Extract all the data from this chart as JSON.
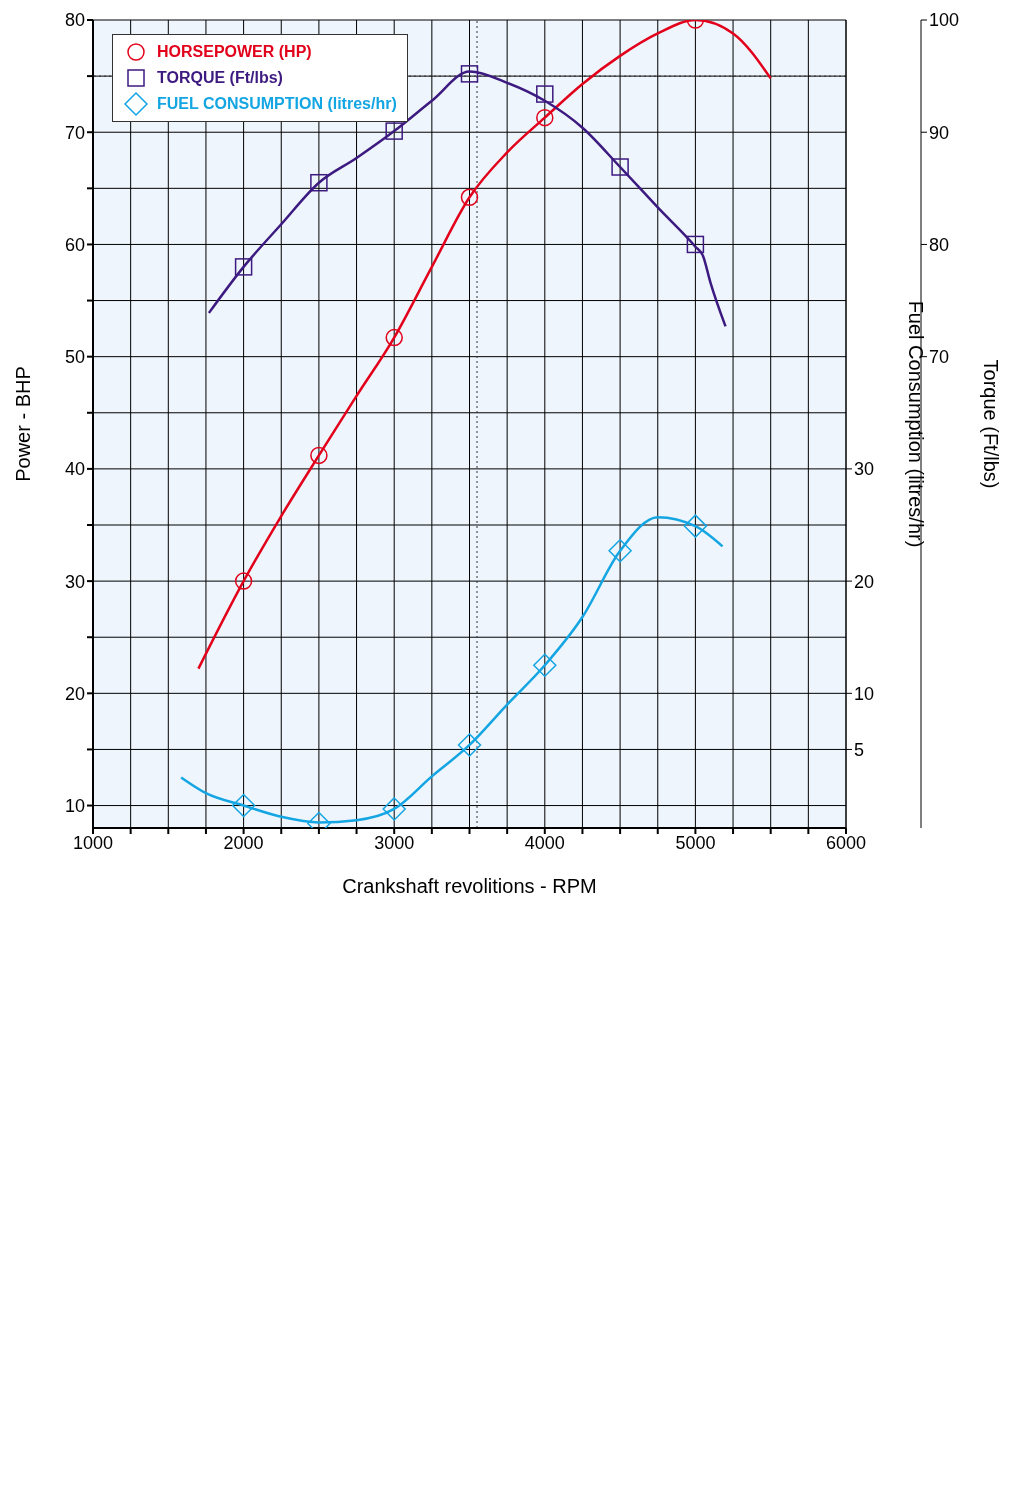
{
  "chart_data": {
    "type": "line",
    "xlabel": "Crankshaft revolitions - RPM",
    "ylabel": "Power - BHP",
    "y2label": "Torque (Ft/lbs)",
    "y3label": "Fuel Consumption (litres/hr)",
    "xlim": [
      1000,
      6000
    ],
    "xticks": [
      1000,
      {
        "value": 1250,
        "label": null
      },
      {
        "value": 1500,
        "label": null
      },
      {
        "value": 1750,
        "label": null
      },
      2000,
      {
        "value": 2250,
        "label": null
      },
      {
        "value": 2500,
        "label": null
      },
      {
        "value": 2750,
        "label": null
      },
      3000,
      {
        "value": 3250,
        "label": null
      },
      {
        "value": 3500,
        "label": null
      },
      {
        "value": 3750,
        "label": null
      },
      4000,
      {
        "value": 4250,
        "label": null
      },
      {
        "value": 4500,
        "label": null
      },
      {
        "value": 4750,
        "label": null
      },
      5000,
      {
        "value": 5250,
        "label": null
      },
      {
        "value": 5500,
        "label": null
      },
      {
        "value": 5750,
        "label": null
      },
      6000
    ],
    "ylim": [
      8,
      80
    ],
    "yticks": [
      10,
      {
        "value": 15,
        "label": null
      },
      20,
      {
        "value": 25,
        "label": null
      },
      30,
      {
        "value": 35,
        "label": null
      },
      40,
      {
        "value": 45,
        "label": null
      },
      50,
      {
        "value": 55,
        "label": null
      },
      60,
      {
        "value": 65,
        "label": null
      },
      70,
      {
        "value": 75,
        "label": null
      },
      80
    ],
    "y2lim": [
      28,
      100
    ],
    "y2ticks": [
      70,
      80,
      90,
      100
    ],
    "y3lim": [
      -2,
      70
    ],
    "y3ticks": [
      5,
      10,
      20,
      30
    ],
    "grid": true,
    "legend": "top left",
    "ref_lines": [
      {
        "axis": "y2",
        "value": 95,
        "line_style": "dotted"
      },
      {
        "axis": "x",
        "value": 3550,
        "line_style": "dotted"
      }
    ],
    "series": [
      {
        "name": "HORSEPOWER (HP)",
        "marker": "none",
        "color": "#e2001a",
        "x": [
          1700,
          2000,
          2250,
          2500,
          2750,
          3000,
          3250,
          3500,
          3750,
          4000,
          4250,
          4500,
          4750,
          5000,
          5250,
          5500
        ],
        "values": [
          22.2,
          30,
          35.8,
          41.2,
          46.5,
          51.7,
          58,
          64.2,
          68.2,
          71.3,
          74.3,
          76.8,
          78.8,
          80,
          78.8,
          74.8
        ]
      },
      {
        "type": "scatter",
        "marker": "circle",
        "color": "#e2001a",
        "x": [
          2000,
          2500,
          3000,
          3500,
          4000,
          5000
        ],
        "values": [
          30,
          41.2,
          51.7,
          64.2,
          71.3,
          80
        ]
      },
      {
        "name": "TORQUE (Ft/lbs)",
        "marker": "none",
        "axis": "y2",
        "color": "#3d1a80",
        "x": [
          1770,
          2000,
          2250,
          2500,
          2750,
          3000,
          3250,
          3500,
          3750,
          4000,
          4250,
          4500,
          4750,
          5000,
          5050,
          5100,
          5200
        ],
        "values": [
          73.9,
          78,
          81.8,
          85.5,
          87.7,
          90.1,
          92.8,
          95.4,
          94.4,
          92.8,
          90.4,
          86.9,
          83.3,
          79.8,
          79,
          76.6,
          72.7
        ]
      },
      {
        "type": "scatter",
        "marker": "square",
        "axis": "y2",
        "color": "#3d1a80",
        "x": [
          2000,
          2500,
          3000,
          3500,
          4000,
          4500,
          5000
        ],
        "values": [
          78,
          85.5,
          90.1,
          95.2,
          93.4,
          86.9,
          80
        ]
      },
      {
        "name": "FUEL CONSUMPTION (litres/hr)",
        "marker": "none",
        "axis": "y3",
        "color": "#14a5e3",
        "x": [
          1585,
          1750,
          2000,
          2250,
          2500,
          2750,
          3000,
          3250,
          3500,
          3750,
          4000,
          4250,
          4500,
          4750,
          5000,
          5180
        ],
        "values": [
          2.5,
          1.1,
          0,
          -1,
          -1.5,
          -1.3,
          -0.3,
          2.6,
          5.4,
          9,
          12.5,
          16.8,
          22.7,
          25.7,
          24.9,
          23.1
        ]
      },
      {
        "type": "scatter",
        "marker": "diamond",
        "axis": "y3",
        "color": "#14a5e3",
        "x": [
          2000,
          2500,
          3000,
          3500,
          4000,
          4500,
          5000
        ],
        "values": [
          0,
          -1.6,
          -0.3,
          5.4,
          12.5,
          22.7,
          24.9
        ]
      }
    ]
  }
}
